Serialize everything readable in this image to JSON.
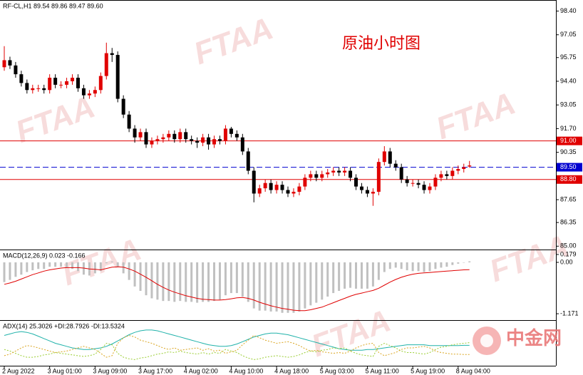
{
  "watermark": "FTAA",
  "logo": "中金网",
  "chart_data": [
    {
      "type": "candlestick",
      "title": "RF-CL,H1  89.54 89.86 89.47 89.60",
      "annotation": "原油小时图",
      "up_color": "#e00000",
      "down_color": "#000000",
      "categories": [
        "2 Aug 2022",
        null,
        null,
        null,
        null,
        null,
        null,
        null,
        "3 Aug 01:00",
        null,
        null,
        null,
        null,
        null,
        null,
        null,
        "3 Aug 09:00",
        null,
        null,
        null,
        null,
        null,
        null,
        null,
        "3 Aug 17:00",
        null,
        null,
        null,
        null,
        null,
        null,
        null,
        "4 Aug 02:00",
        null,
        null,
        null,
        null,
        null,
        null,
        null,
        "4 Aug 10:00",
        null,
        null,
        null,
        null,
        null,
        null,
        null,
        "4 Aug 18:00",
        null,
        null,
        null,
        null,
        null,
        null,
        null,
        "5 Aug 03:00",
        null,
        null,
        null,
        null,
        null,
        null,
        null,
        "5 Aug 11:00",
        null,
        null,
        null,
        null,
        null,
        null,
        null,
        "5 Aug 19:00",
        null,
        null,
        null,
        null,
        null,
        null,
        null,
        "8 Aug 04:00",
        null,
        null
      ],
      "open": [
        95.2,
        95.6,
        95.3,
        94.8,
        94.3,
        93.9,
        94.0,
        94.0,
        93.9,
        94.6,
        94.2,
        94.2,
        94.4,
        94.6,
        94.0,
        93.6,
        93.7,
        93.9,
        94.7,
        96.0,
        95.9,
        93.4,
        92.5,
        91.7,
        91.2,
        91.5,
        90.8,
        91.0,
        91.1,
        91.2,
        91.4,
        91.1,
        91.5,
        91.1,
        91.0,
        90.9,
        91.2,
        90.8,
        91.1,
        91.0,
        91.7,
        91.4,
        91.2,
        90.4,
        89.3,
        88.0,
        88.3,
        88.6,
        88.2,
        88.5,
        88.2,
        88.0,
        88.1,
        88.4,
        88.9,
        89.1,
        88.9,
        89.1,
        89.2,
        89.3,
        89.2,
        89.3,
        88.9,
        88.4,
        88.2,
        88.0,
        88.1,
        89.8,
        90.4,
        89.7,
        89.5,
        88.8,
        88.6,
        88.6,
        88.5,
        88.2,
        88.4,
        88.9,
        89.1,
        89.0,
        89.3,
        89.4,
        89.54
      ],
      "high": [
        96.4,
        95.8,
        95.5,
        95.0,
        94.5,
        94.2,
        94.2,
        94.2,
        94.8,
        94.8,
        94.4,
        94.6,
        94.8,
        94.8,
        94.2,
        93.9,
        94.1,
        94.9,
        96.6,
        96.3,
        96.1,
        93.6,
        92.7,
        91.9,
        91.7,
        91.7,
        91.2,
        91.3,
        91.4,
        91.6,
        91.6,
        91.7,
        91.7,
        91.3,
        91.2,
        91.4,
        91.4,
        91.3,
        91.3,
        91.9,
        91.8,
        91.6,
        91.4,
        90.6,
        89.5,
        88.5,
        88.8,
        88.8,
        88.7,
        88.7,
        88.4,
        88.3,
        88.6,
        89.1,
        89.3,
        89.3,
        89.3,
        89.4,
        89.5,
        89.5,
        89.5,
        89.5,
        89.1,
        88.6,
        88.4,
        88.3,
        90.0,
        90.7,
        90.6,
        89.9,
        89.7,
        89.0,
        88.8,
        88.8,
        88.7,
        88.6,
        89.1,
        89.3,
        89.3,
        89.5,
        89.6,
        89.7,
        89.86
      ],
      "low": [
        95.0,
        95.1,
        94.6,
        94.1,
        93.7,
        93.7,
        93.8,
        93.7,
        93.7,
        94.0,
        94.0,
        94.0,
        94.2,
        93.8,
        93.4,
        93.4,
        93.5,
        93.7,
        94.5,
        95.5,
        93.2,
        92.3,
        91.5,
        90.9,
        91.0,
        90.6,
        90.6,
        90.8,
        90.9,
        91.0,
        90.9,
        90.9,
        90.9,
        90.8,
        90.6,
        90.7,
        90.5,
        90.6,
        90.8,
        90.8,
        91.2,
        91.0,
        90.2,
        89.1,
        87.5,
        87.8,
        88.1,
        88.0,
        88.0,
        88.0,
        87.8,
        87.8,
        87.9,
        88.2,
        88.7,
        88.7,
        88.7,
        88.9,
        89.0,
        89.0,
        89.0,
        88.7,
        88.2,
        88.0,
        87.8,
        87.3,
        87.9,
        89.6,
        89.5,
        89.3,
        88.6,
        88.4,
        88.4,
        88.3,
        88.0,
        88.0,
        88.2,
        88.7,
        88.8,
        88.8,
        89.1,
        89.2,
        89.47
      ],
      "close": [
        95.6,
        95.3,
        94.8,
        94.3,
        93.9,
        94.0,
        94.0,
        93.9,
        94.6,
        94.2,
        94.2,
        94.4,
        94.6,
        94.0,
        93.6,
        93.7,
        93.9,
        94.7,
        96.0,
        95.9,
        93.4,
        92.5,
        91.7,
        91.2,
        91.5,
        90.8,
        91.0,
        91.1,
        91.2,
        91.4,
        91.1,
        91.5,
        91.1,
        91.0,
        90.9,
        91.2,
        90.8,
        91.1,
        91.0,
        91.7,
        91.4,
        91.2,
        90.4,
        89.3,
        88.0,
        88.3,
        88.6,
        88.2,
        88.5,
        88.2,
        88.0,
        88.1,
        88.4,
        88.9,
        89.1,
        88.9,
        89.1,
        89.2,
        89.3,
        89.2,
        89.3,
        88.9,
        88.4,
        88.2,
        88.0,
        88.1,
        89.8,
        90.4,
        89.7,
        89.5,
        88.8,
        88.6,
        88.6,
        88.5,
        88.2,
        88.4,
        88.9,
        89.1,
        89.0,
        89.3,
        89.4,
        89.5,
        89.6
      ],
      "ylim": [
        84.85,
        98.95
      ],
      "yticks": [
        {
          "value": 98.4,
          "label": "98.40"
        },
        97.05,
        95.75,
        {
          "value": 94.4,
          "label": "94.40"
        },
        93.05,
        {
          "value": 91.7,
          "label": "91.70"
        },
        90.35,
        87.65,
        86.35,
        {
          "value": 85,
          "label": "85.00"
        }
      ],
      "levels": [
        {
          "value": 91,
          "label": "91.00",
          "color": "#e00000",
          "style": "solid"
        },
        {
          "value": 89.5,
          "label": "89.50",
          "color": "#0000d0",
          "style": "dashed"
        },
        {
          "value": 88.8,
          "label": "88.80",
          "color": "#e00000",
          "style": "solid"
        }
      ]
    },
    {
      "type": "macd",
      "title": "MACD(12,26,9) 0.023 -0.166",
      "ylim": [
        -1.3,
        0.26
      ],
      "yticks": [
        0.179,
        {
          "value": 0,
          "label": "0.00"
        },
        -1.171
      ],
      "series": [
        {
          "color": "#c0c0c0",
          "style": "bar",
          "values": [
            -0.45,
            -0.4,
            -0.33,
            -0.28,
            -0.22,
            -0.18,
            -0.15,
            -0.15,
            -0.1,
            -0.1,
            -0.1,
            -0.12,
            -0.15,
            -0.2,
            -0.28,
            -0.3,
            -0.25,
            -0.2,
            -0.02,
            0.02,
            -0.1,
            -0.25,
            -0.4,
            -0.55,
            -0.65,
            -0.75,
            -0.82,
            -0.85,
            -0.88,
            -0.88,
            -0.9,
            -0.88,
            -0.9,
            -0.9,
            -0.92,
            -0.9,
            -0.9,
            -0.88,
            -0.85,
            -0.75,
            -0.7,
            -0.7,
            -0.78,
            -0.9,
            -1.05,
            -1.1,
            -1.1,
            -1.12,
            -1.12,
            -1.15,
            -1.15,
            -1.15,
            -1.12,
            -1.05,
            -0.98,
            -0.92,
            -0.85,
            -0.78,
            -0.7,
            -0.65,
            -0.6,
            -0.58,
            -0.6,
            -0.6,
            -0.6,
            -0.55,
            -0.4,
            -0.22,
            -0.15,
            -0.12,
            -0.15,
            -0.18,
            -0.2,
            -0.2,
            -0.22,
            -0.2,
            -0.15,
            -0.12,
            -0.1,
            -0.06,
            -0.03,
            0.0,
            0.023
          ]
        },
        {
          "color": "#e00000",
          "style": "line",
          "values": [
            -0.5,
            -0.47,
            -0.43,
            -0.38,
            -0.33,
            -0.28,
            -0.24,
            -0.2,
            -0.17,
            -0.15,
            -0.13,
            -0.12,
            -0.12,
            -0.12,
            -0.13,
            -0.15,
            -0.16,
            -0.17,
            -0.14,
            -0.11,
            -0.1,
            -0.11,
            -0.15,
            -0.2,
            -0.27,
            -0.34,
            -0.42,
            -0.5,
            -0.57,
            -0.63,
            -0.68,
            -0.72,
            -0.76,
            -0.79,
            -0.82,
            -0.84,
            -0.85,
            -0.86,
            -0.86,
            -0.85,
            -0.83,
            -0.81,
            -0.8,
            -0.82,
            -0.86,
            -0.91,
            -0.95,
            -0.99,
            -1.02,
            -1.05,
            -1.07,
            -1.09,
            -1.1,
            -1.1,
            -1.08,
            -1.05,
            -1.02,
            -0.97,
            -0.92,
            -0.87,
            -0.82,
            -0.77,
            -0.73,
            -0.7,
            -0.67,
            -0.64,
            -0.59,
            -0.52,
            -0.45,
            -0.39,
            -0.34,
            -0.3,
            -0.27,
            -0.25,
            -0.24,
            -0.23,
            -0.22,
            -0.21,
            -0.2,
            -0.19,
            -0.18,
            -0.17,
            -0.166
          ]
        }
      ]
    },
    {
      "type": "adx",
      "title": "ADX(14) 25.3026 +DI:28.7926 -DI:13.5324",
      "ylim": [
        0,
        55
      ],
      "series": [
        {
          "color": "#20b2aa",
          "style": "line",
          "values": [
            38,
            40,
            42,
            43,
            42,
            40,
            37,
            34,
            31,
            28,
            26,
            24,
            22,
            21,
            20,
            20,
            21,
            22,
            24,
            27,
            31,
            35,
            39,
            42,
            44,
            45,
            45,
            44,
            42,
            40,
            38,
            36,
            34,
            32,
            30,
            28,
            26,
            25,
            24,
            24,
            25,
            27,
            30,
            33,
            36,
            38,
            40,
            41,
            41,
            40,
            39,
            37,
            35,
            33,
            31,
            29,
            27,
            25,
            23,
            21,
            20,
            19,
            19,
            19,
            20,
            20,
            21,
            22,
            23,
            24,
            25,
            26,
            26,
            26,
            26,
            25,
            25,
            25,
            25,
            25,
            25,
            25.3,
            25.3026
          ]
        },
        {
          "color": "#9acd32",
          "style": "dotted",
          "values": [
            20,
            18,
            15,
            12,
            10,
            10,
            11,
            13,
            14,
            16,
            15,
            14,
            13,
            12,
            11,
            12,
            14,
            20,
            28,
            26,
            15,
            10,
            8,
            7,
            9,
            10,
            12,
            14,
            15,
            17,
            16,
            18,
            16,
            15,
            14,
            16,
            14,
            16,
            15,
            20,
            18,
            16,
            12,
            9,
            7,
            8,
            10,
            11,
            12,
            11,
            10,
            11,
            13,
            16,
            18,
            17,
            19,
            20,
            22,
            21,
            22,
            18,
            15,
            13,
            12,
            11,
            24,
            28,
            25,
            22,
            18,
            16,
            16,
            15,
            14,
            16,
            20,
            23,
            24,
            26,
            27,
            28,
            28.7926
          ]
        },
        {
          "color": "#daa520",
          "style": "dotted",
          "values": [
            12,
            14,
            18,
            22,
            25,
            24,
            22,
            20,
            18,
            16,
            17,
            18,
            20,
            22,
            24,
            22,
            20,
            15,
            10,
            12,
            28,
            35,
            38,
            36,
            32,
            30,
            28,
            25,
            22,
            20,
            22,
            19,
            20,
            21,
            22,
            19,
            21,
            18,
            19,
            15,
            17,
            19,
            26,
            32,
            38,
            35,
            32,
            30,
            28,
            29,
            30,
            28,
            25,
            21,
            18,
            19,
            17,
            16,
            15,
            16,
            15,
            18,
            22,
            25,
            27,
            28,
            16,
            12,
            14,
            16,
            20,
            22,
            22,
            23,
            24,
            22,
            18,
            16,
            15,
            14,
            14,
            13.5,
            13.5324
          ]
        }
      ]
    }
  ]
}
